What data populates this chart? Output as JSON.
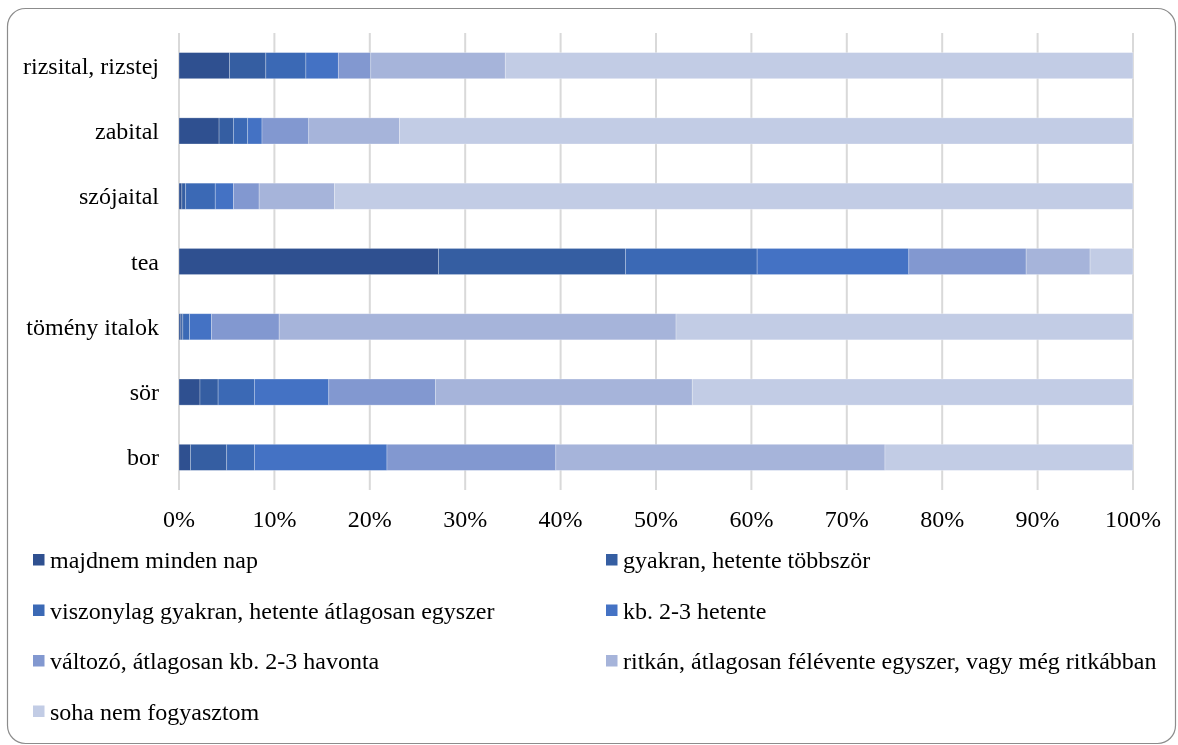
{
  "chart_data": {
    "type": "bar",
    "orientation": "horizontal",
    "stacked": true,
    "categories": [
      "rizsital, rizstej",
      "zabital",
      "szójaital",
      "tea",
      "tömény italok",
      "sör",
      "bor"
    ],
    "series": [
      {
        "name": "majdnem minden nap",
        "color": "#2f5090",
        "values": [
          5.3,
          4.2,
          0.3,
          27.2,
          0.2,
          2.2,
          1.2
        ]
      },
      {
        "name": "gyakran, hetente többször",
        "color": "#355ea2",
        "values": [
          3.8,
          1.5,
          0.4,
          19.6,
          0.2,
          1.9,
          3.8
        ]
      },
      {
        "name": "viszonylag gyakran, hetente átlagosan egyszer",
        "color": "#3b69b5",
        "values": [
          4.2,
          1.5,
          3.1,
          13.8,
          0.7,
          3.8,
          2.9
        ]
      },
      {
        "name": "kb. 2-3 hetente",
        "color": "#4472c4",
        "values": [
          3.4,
          1.5,
          1.9,
          15.9,
          2.3,
          7.8,
          13.9
        ]
      },
      {
        "name": "változó, átlagosan kb. 2-3 havonta",
        "color": "#8298d0",
        "values": [
          3.4,
          4.9,
          2.7,
          12.3,
          7.1,
          11.2,
          17.7
        ]
      },
      {
        "name": "ritkán, átlagosan félévente egyszer, vagy még ritkábban",
        "color": "#a6b4da",
        "values": [
          14.1,
          9.5,
          7.9,
          6.7,
          41.6,
          26.9,
          34.5
        ]
      },
      {
        "name": "soha nem fogyasztom",
        "color": "#c2cce5",
        "values": [
          65.8,
          76.9,
          83.7,
          4.5,
          47.9,
          46.2,
          26.0
        ]
      }
    ],
    "xlim": [
      0,
      100
    ],
    "xticks": [
      {
        "value": 0,
        "label": "0%"
      },
      {
        "value": 10,
        "label": "10%"
      },
      {
        "value": 20,
        "label": "20%"
      },
      {
        "value": 30,
        "label": "30%"
      },
      {
        "value": 40,
        "label": "40%"
      },
      {
        "value": 50,
        "label": "50%"
      },
      {
        "value": 60,
        "label": "60%"
      },
      {
        "value": 70,
        "label": "70%"
      },
      {
        "value": 80,
        "label": "80%"
      },
      {
        "value": 90,
        "label": "90%"
      },
      {
        "value": 100,
        "label": "100%"
      }
    ],
    "grid": "x",
    "legend": "bottom"
  }
}
